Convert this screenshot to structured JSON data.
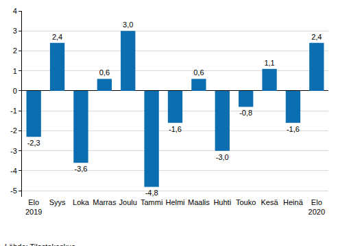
{
  "chart_data": {
    "type": "bar",
    "categories": [
      "Elo\n2019",
      "Syys",
      "Loka",
      "Marras",
      "Joulu",
      "Tammi",
      "Helmi",
      "Maalis",
      "Huhti",
      "Touko",
      "Kesä",
      "Heinä",
      "Elo\n2020"
    ],
    "values": [
      -2.3,
      2.4,
      -3.6,
      0.6,
      3.0,
      -4.8,
      -1.6,
      0.6,
      -3.0,
      -0.8,
      1.1,
      -1.6,
      2.4
    ],
    "value_labels": [
      "-2,3",
      "2,4",
      "-3,6",
      "0,6",
      "3,0",
      "-4,8",
      "-1,6",
      "0,6",
      "-3,0",
      "-0,8",
      "1,1",
      "-1,6",
      "2,4"
    ],
    "data_labels": true,
    "color": "#0a6eb0",
    "ylim": [
      -5.3,
      4
    ],
    "yticks": [
      -5,
      -4,
      -3,
      -2,
      -1,
      0,
      1,
      2,
      3,
      4
    ],
    "grid": true,
    "source": "Lähde: Tilastokeskus"
  }
}
